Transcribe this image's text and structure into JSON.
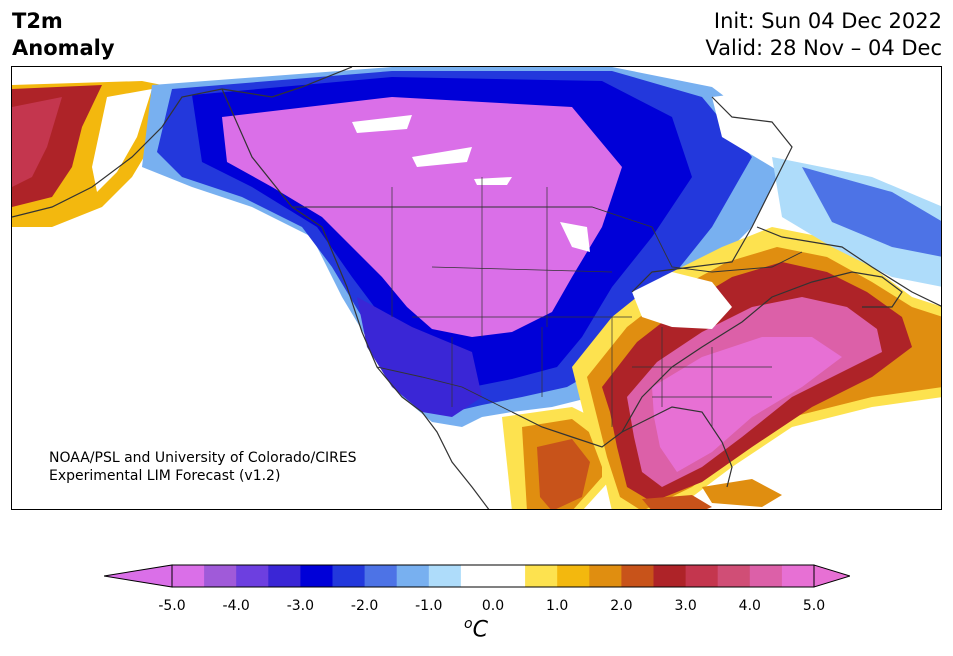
{
  "header": {
    "variable": "T2m",
    "subtitle": "Anomaly",
    "init": "Init: Sun 04 Dec 2022",
    "valid": "Valid: 28 Nov – 04 Dec"
  },
  "credit": {
    "line1": "NOAA/PSL and University of Colorado/CIRES",
    "line2": "Experimental LIM Forecast (v1.2)"
  },
  "colorbar": {
    "unit_prefix": "o",
    "unit_symbol": "C",
    "ticks": [
      "-5.0",
      "-4.0",
      "-3.0",
      "-2.0",
      "-1.0",
      "0.0",
      "1.0",
      "2.0",
      "3.0",
      "4.0",
      "5.0"
    ],
    "colors": [
      "#da6fe8",
      "#a05ad9",
      "#6d3fe0",
      "#3a26d6",
      "#0000d8",
      "#2338dc",
      "#4d73e6",
      "#78b0f0",
      "#aedcfa",
      "#ffffff",
      "#ffffff",
      "#fde24f",
      "#f3b80e",
      "#e08e10",
      "#c8531a",
      "#ae2328",
      "#c4364e",
      "#d04e76",
      "#dc60a8",
      "#e770d4"
    ],
    "under_color": "#da6fe8",
    "over_color": "#e770d4"
  }
}
